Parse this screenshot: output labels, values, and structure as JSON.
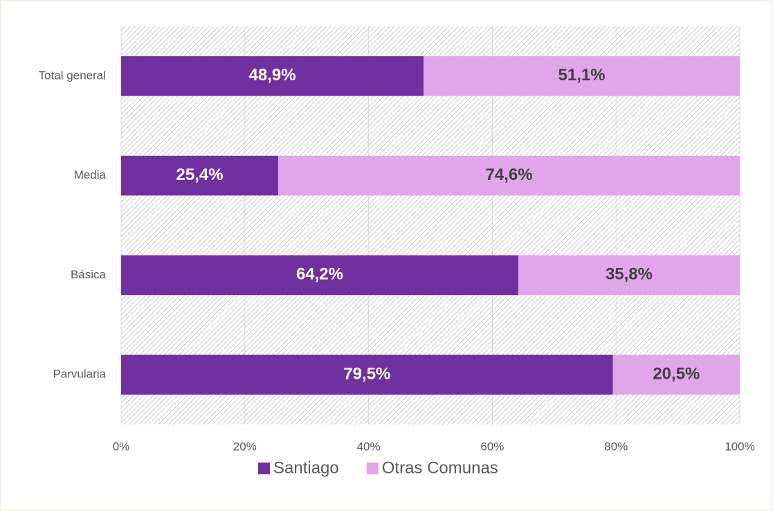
{
  "chart_data": {
    "type": "stacked_barh",
    "categories": [
      "Total general",
      "Media",
      "Básica",
      "Parvularia"
    ],
    "series": [
      {
        "name": "Santiago",
        "color": "#7030a0",
        "values": [
          48.9,
          25.4,
          64.2,
          79.5
        ],
        "value_labels": [
          "48,9%",
          "25,4%",
          "64,2%",
          "79,5%"
        ]
      },
      {
        "name": "Otras Comunas",
        "color": "#e1a6ea",
        "values": [
          51.1,
          74.6,
          35.8,
          20.5
        ],
        "value_labels": [
          "51,1%",
          "74,6%",
          "35,8%",
          "20,5%"
        ]
      }
    ],
    "xlim": [
      0,
      100
    ],
    "xticks": [
      {
        "value": 0,
        "label": "0%"
      },
      {
        "value": 20,
        "label": "20%"
      },
      {
        "value": 40,
        "label": "40%"
      },
      {
        "value": 60,
        "label": "60%"
      },
      {
        "value": 80,
        "label": "80%"
      },
      {
        "value": 100,
        "label": "100%"
      }
    ],
    "grid": true,
    "legend": "bottom"
  }
}
